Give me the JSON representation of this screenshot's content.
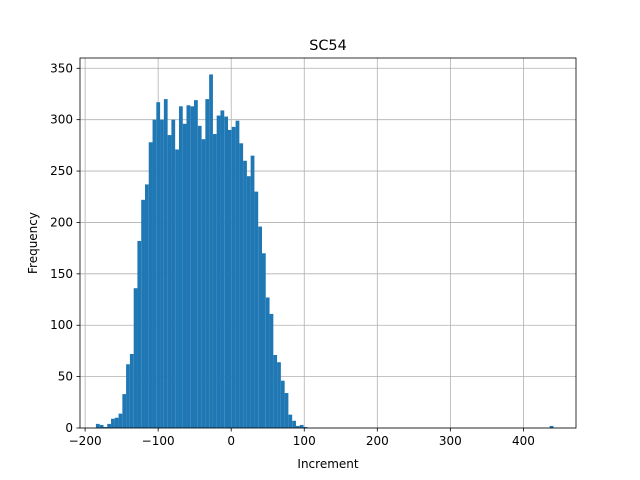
{
  "chart_data": {
    "type": "bar",
    "title": "SC54",
    "xlabel": "Increment",
    "ylabel": "Frequency",
    "xlim": [
      -207,
      472
    ],
    "ylim": [
      0,
      360
    ],
    "xticks": [
      -200,
      -100,
      0,
      100,
      200,
      300,
      400
    ],
    "yticks": [
      0,
      50,
      100,
      150,
      200,
      250,
      300,
      350
    ],
    "grid": true,
    "bar_color": "#1f77b4",
    "bin_width": 5.166,
    "bins": [
      {
        "x0": -185.2,
        "count": 4
      },
      {
        "x0": -180.0,
        "count": 3
      },
      {
        "x0": -174.9,
        "count": 1
      },
      {
        "x0": -169.7,
        "count": 4
      },
      {
        "x0": -164.5,
        "count": 9
      },
      {
        "x0": -159.4,
        "count": 10
      },
      {
        "x0": -154.2,
        "count": 14
      },
      {
        "x0": -149.0,
        "count": 33
      },
      {
        "x0": -143.9,
        "count": 62
      },
      {
        "x0": -138.7,
        "count": 72
      },
      {
        "x0": -133.5,
        "count": 136
      },
      {
        "x0": -128.4,
        "count": 182
      },
      {
        "x0": -123.2,
        "count": 222
      },
      {
        "x0": -118.0,
        "count": 237
      },
      {
        "x0": -112.9,
        "count": 278
      },
      {
        "x0": -107.7,
        "count": 300
      },
      {
        "x0": -102.5,
        "count": 317
      },
      {
        "x0": -97.4,
        "count": 300
      },
      {
        "x0": -92.2,
        "count": 320
      },
      {
        "x0": -87.0,
        "count": 285
      },
      {
        "x0": -81.9,
        "count": 300
      },
      {
        "x0": -76.7,
        "count": 271
      },
      {
        "x0": -71.5,
        "count": 313
      },
      {
        "x0": -66.4,
        "count": 296
      },
      {
        "x0": -61.2,
        "count": 314
      },
      {
        "x0": -56.0,
        "count": 313
      },
      {
        "x0": -50.9,
        "count": 319
      },
      {
        "x0": -45.7,
        "count": 294
      },
      {
        "x0": -40.5,
        "count": 281
      },
      {
        "x0": -35.4,
        "count": 320
      },
      {
        "x0": -30.2,
        "count": 344
      },
      {
        "x0": -25.0,
        "count": 286
      },
      {
        "x0": -19.9,
        "count": 304
      },
      {
        "x0": -14.7,
        "count": 309
      },
      {
        "x0": -9.5,
        "count": 303
      },
      {
        "x0": -4.4,
        "count": 290
      },
      {
        "x0": 0.8,
        "count": 293
      },
      {
        "x0": 6.0,
        "count": 299
      },
      {
        "x0": 11.1,
        "count": 277
      },
      {
        "x0": 16.3,
        "count": 260
      },
      {
        "x0": 21.5,
        "count": 245
      },
      {
        "x0": 26.6,
        "count": 265
      },
      {
        "x0": 31.8,
        "count": 230
      },
      {
        "x0": 37.0,
        "count": 196
      },
      {
        "x0": 42.1,
        "count": 170
      },
      {
        "x0": 47.3,
        "count": 127
      },
      {
        "x0": 52.5,
        "count": 111
      },
      {
        "x0": 57.6,
        "count": 71
      },
      {
        "x0": 62.8,
        "count": 64
      },
      {
        "x0": 68.0,
        "count": 46
      },
      {
        "x0": 73.1,
        "count": 34
      },
      {
        "x0": 78.3,
        "count": 13
      },
      {
        "x0": 83.5,
        "count": 7
      },
      {
        "x0": 88.6,
        "count": 2
      },
      {
        "x0": 93.8,
        "count": 3
      },
      {
        "x0": 99.0,
        "count": 1
      },
      {
        "x0": 436.0,
        "count": 2
      }
    ]
  }
}
